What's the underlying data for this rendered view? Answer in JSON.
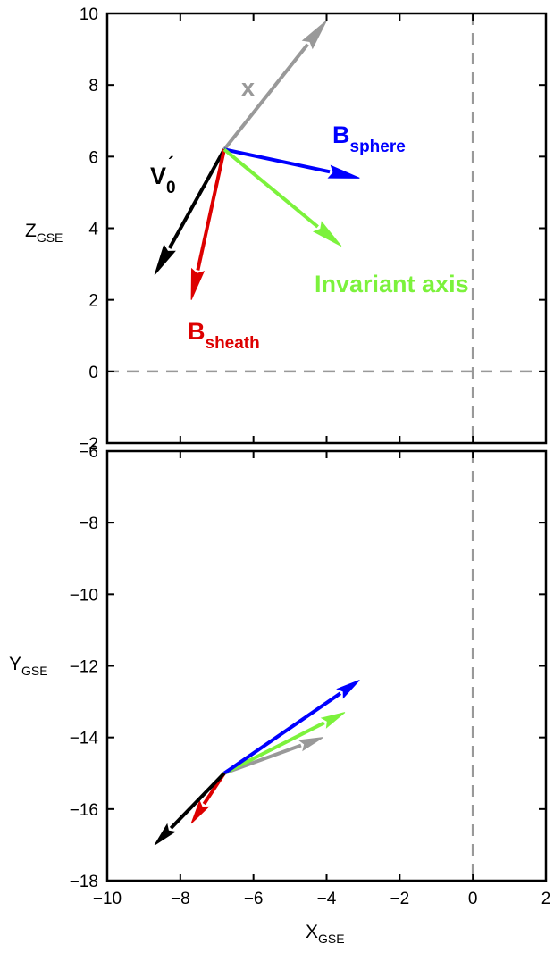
{
  "chart_data": [
    {
      "type": "vector",
      "panel": "top",
      "xlabel": "X",
      "xlabel_sub": "GSE",
      "ylabel": "Z",
      "ylabel_sub": "GSE",
      "xlim": [
        -10,
        2
      ],
      "ylim": [
        -2,
        10
      ],
      "yticks": [
        "−2",
        "0",
        "2",
        "4",
        "6",
        "8",
        "10"
      ],
      "yticks_values": [
        -2,
        0,
        2,
        4,
        6,
        8,
        10
      ],
      "dashed_zero_lines": true,
      "origin": [
        -6.8,
        6.2
      ],
      "vectors": [
        {
          "name": "x",
          "label_main": "x",
          "label_sub": "",
          "color": "#999999",
          "end": [
            -4.0,
            9.8
          ]
        },
        {
          "name": "B sphere",
          "label_main": "B",
          "label_sub": "sphere",
          "color": "#0000ff",
          "end": [
            -3.1,
            5.4
          ]
        },
        {
          "name": "V0'",
          "label_main": "V",
          "label_sub": "0",
          "label_prime": "´",
          "color": "#000000",
          "end": [
            -8.7,
            2.7
          ]
        },
        {
          "name": "B sheath",
          "label_main": "B",
          "label_sub": "sheath",
          "color": "#dd0000",
          "end": [
            -7.7,
            2.0
          ]
        },
        {
          "name": "Invariant axis",
          "label_main": "Invariant axis",
          "label_sub": "",
          "color": "#7cf23c",
          "end": [
            -3.6,
            3.5
          ]
        }
      ]
    },
    {
      "type": "vector",
      "panel": "bottom",
      "xlabel": "X",
      "xlabel_sub": "GSE",
      "ylabel": "Y",
      "ylabel_sub": "GSE",
      "xlim": [
        -10,
        2
      ],
      "ylim": [
        -18,
        -6
      ],
      "xticks": [
        "−10",
        "−8",
        "−6",
        "−4",
        "−2",
        "0",
        "2"
      ],
      "xticks_values": [
        -10,
        -8,
        -6,
        -4,
        -2,
        0,
        2
      ],
      "yticks": [
        "−18",
        "−16",
        "−14",
        "−12",
        "−10",
        "−8",
        "−6"
      ],
      "yticks_values": [
        -18,
        -16,
        -14,
        -12,
        -10,
        -8,
        -6
      ],
      "dashed_zero_lines": true,
      "origin": [
        -6.8,
        -15.0
      ],
      "vectors": [
        {
          "name": "x",
          "color": "#999999",
          "end": [
            -4.1,
            -14.0
          ]
        },
        {
          "name": "Invariant axis",
          "color": "#7cf23c",
          "end": [
            -3.5,
            -13.3
          ]
        },
        {
          "name": "B sphere",
          "color": "#0000ff",
          "end": [
            -3.1,
            -12.4
          ]
        },
        {
          "name": "B sheath",
          "color": "#dd0000",
          "end": [
            -7.7,
            -16.4
          ]
        },
        {
          "name": "V0'",
          "color": "#000000",
          "end": [
            -8.7,
            -17.0
          ]
        }
      ]
    }
  ]
}
